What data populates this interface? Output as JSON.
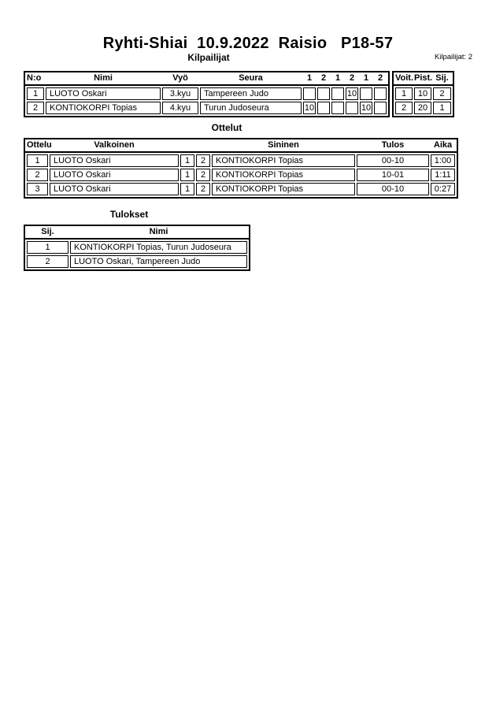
{
  "page": {
    "title": "Ryhti-Shiai  10.9.2022  Raisio   P18-57",
    "competitors_count_label": "Kilpailijat: 2"
  },
  "competitors": {
    "title": "Kilpailijat",
    "headers": {
      "no": "N:o",
      "name": "Nimi",
      "belt": "Vyö",
      "club": "Seura",
      "rounds": [
        "1",
        "2",
        "1",
        "2",
        "1",
        "2"
      ],
      "wins": "Voit.",
      "points": "Pist.",
      "place": "Sij."
    },
    "rows": [
      {
        "no": "1",
        "name": "LUOTO Oskari",
        "belt": "3.kyu",
        "club": "Tampereen Judo",
        "scores": [
          "",
          "",
          "",
          "10",
          "",
          ""
        ],
        "wins": "1",
        "points": "10",
        "place": "2"
      },
      {
        "no": "2",
        "name": "KONTIOKORPI Topias",
        "belt": "4.kyu",
        "club": "Turun Judoseura",
        "scores": [
          "10",
          "",
          "",
          "",
          "10",
          ""
        ],
        "wins": "2",
        "points": "20",
        "place": "1"
      }
    ]
  },
  "matches": {
    "title": "Ottelut",
    "headers": {
      "match": "Ottelu",
      "white": "Valkoinen",
      "blue": "Sininen",
      "result": "Tulos",
      "time": "Aika"
    },
    "rows": [
      {
        "match": "1",
        "white": "LUOTO Oskari",
        "white_no": "1",
        "blue_no": "2",
        "blue": "KONTIOKORPI Topias",
        "result": "00-10",
        "time": "1:00"
      },
      {
        "match": "2",
        "white": "LUOTO Oskari",
        "white_no": "1",
        "blue_no": "2",
        "blue": "KONTIOKORPI Topias",
        "result": "10-01",
        "time": "1:11"
      },
      {
        "match": "3",
        "white": "LUOTO Oskari",
        "white_no": "1",
        "blue_no": "2",
        "blue": "KONTIOKORPI Topias",
        "result": "00-10",
        "time": "0:27"
      }
    ]
  },
  "results": {
    "title": "Tulokset",
    "headers": {
      "place": "Sij.",
      "name": "Nimi"
    },
    "rows": [
      {
        "place": "1",
        "name": "KONTIOKORPI Topias, Turun Judoseura"
      },
      {
        "place": "2",
        "name": "LUOTO Oskari, Tampereen Judo"
      }
    ]
  }
}
